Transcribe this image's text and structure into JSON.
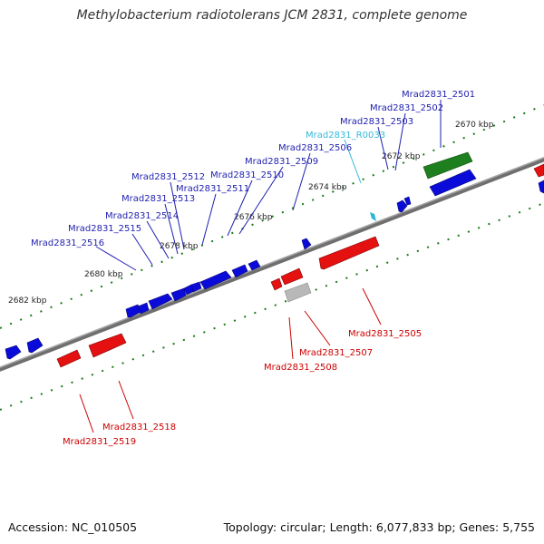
{
  "title": "Methylobacterium radiotolerans JCM 2831, complete genome",
  "footer": {
    "accession": "Accession: NC_010505",
    "summary": "Topology: circular; Length: 6,077,833 bp; Genes: 5,755"
  },
  "colors": {
    "forward_gene": "#0b0bd9",
    "reverse_gene": "#e51010",
    "rna_gene": "#2ab6d8",
    "green_feature": "#1e7f1e",
    "grey_feature": "#b8b8b8",
    "backbone": "#808080",
    "tick": "#1a7a1a",
    "label_blue": "#1f1fb0",
    "label_red": "#cc0000",
    "label_cyan": "#36b9d9"
  },
  "scale_labels": [
    "2670 kbp",
    "2672 kbp",
    "2674 kbp",
    "2676 kbp",
    "2678 kbp",
    "2680 kbp",
    "2682 kbp"
  ],
  "labels_top": [
    {
      "text": "Mrad2831_2501",
      "kind": "blue"
    },
    {
      "text": "Mrad2831_2502",
      "kind": "blue"
    },
    {
      "text": "Mrad2831_2503",
      "kind": "blue"
    },
    {
      "text": "Mrad2831_R0033",
      "kind": "cyan"
    },
    {
      "text": "Mrad2831_2506",
      "kind": "blue"
    },
    {
      "text": "Mrad2831_2509",
      "kind": "blue"
    },
    {
      "text": "Mrad2831_2510",
      "kind": "blue"
    },
    {
      "text": "Mrad2831_2511",
      "kind": "blue"
    },
    {
      "text": "Mrad2831_2512",
      "kind": "blue"
    },
    {
      "text": "Mrad2831_2513",
      "kind": "blue"
    },
    {
      "text": "Mrad2831_2514",
      "kind": "blue"
    },
    {
      "text": "Mrad2831_2515",
      "kind": "blue"
    },
    {
      "text": "Mrad2831_2516",
      "kind": "blue"
    }
  ],
  "labels_bottom": [
    {
      "text": "Mrad2831_2505",
      "kind": "red"
    },
    {
      "text": "Mrad2831_2507",
      "kind": "red"
    },
    {
      "text": "Mrad2831_2508",
      "kind": "red"
    },
    {
      "text": "Mrad2831_2518",
      "kind": "red"
    },
    {
      "text": "Mrad2831_2519",
      "kind": "red"
    }
  ]
}
